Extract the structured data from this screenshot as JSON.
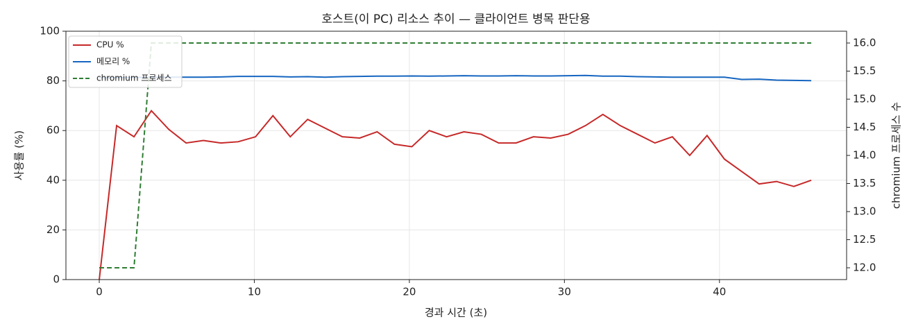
{
  "chart_data": {
    "type": "line",
    "title": "호스트(이 PC) 리소스 추이 — 클라이언트 병목 판단용",
    "xlabel": "경과 시간 (초)",
    "ylabel": "사용률 (%)",
    "y2label": "chromium 프로세스 수",
    "x": [
      0,
      1.12,
      2.24,
      3.36,
      4.48,
      5.6,
      6.72,
      7.84,
      8.96,
      10.08,
      11.2,
      12.32,
      13.44,
      14.56,
      15.68,
      16.8,
      17.92,
      19.04,
      20.16,
      21.28,
      22.4,
      23.52,
      24.64,
      25.76,
      26.88,
      28,
      29.12,
      30.24,
      31.36,
      32.48,
      33.6,
      34.72,
      35.84,
      36.96,
      38.08,
      39.2,
      40.32,
      41.44,
      42.56,
      43.68,
      44.8,
      45.92
    ],
    "series": [
      {
        "name": "CPU %",
        "color": "#c62828",
        "linestyle": "solid",
        "values": [
          0,
          62,
          57.5,
          68,
          60.5,
          55,
          56,
          55,
          55.5,
          57.5,
          66,
          57.5,
          64.5,
          61,
          57.5,
          57,
          59.5,
          54.5,
          53.5,
          60,
          57.5,
          59.5,
          58.5,
          55,
          55,
          57.5,
          57,
          58.5,
          62,
          66.5,
          62,
          58.5,
          55,
          57.5,
          50,
          58,
          48.5,
          43.5,
          38.5,
          39.5,
          37.5,
          40
        ]
      },
      {
        "name": "메모리 %",
        "color": "#1565c0",
        "linestyle": "solid",
        "values": [
          81.3,
          81.3,
          81.4,
          81.5,
          81.5,
          81.5,
          81.5,
          81.6,
          81.8,
          81.8,
          81.8,
          81.6,
          81.7,
          81.5,
          81.7,
          81.8,
          81.9,
          81.9,
          82.0,
          81.9,
          82.0,
          82.1,
          82.0,
          82.0,
          82.1,
          82.0,
          82.0,
          82.1,
          82.2,
          81.9,
          81.9,
          81.7,
          81.6,
          81.5,
          81.5,
          81.5,
          81.5,
          80.6,
          80.7,
          80.3,
          80.2,
          80.1
        ]
      },
      {
        "name": "chromium 프로세스",
        "color": "#2e7d32",
        "linestyle": "dashed",
        "axis": "y2",
        "values": [
          12,
          12,
          12,
          16,
          16,
          16,
          16,
          16,
          16,
          16,
          16,
          16,
          16,
          16,
          16,
          16,
          16,
          16,
          16,
          16,
          16,
          16,
          16,
          16,
          16,
          16,
          16,
          16,
          16,
          16,
          16,
          16,
          16,
          16,
          16,
          16,
          16,
          16,
          16,
          16,
          16,
          16
        ]
      }
    ],
    "xlim": [
      -2.15,
      48.2
    ],
    "xticks": [
      0,
      10,
      20,
      30,
      40
    ],
    "ylim": [
      0,
      100
    ],
    "yticks": [
      0,
      20,
      40,
      60,
      80,
      100
    ],
    "y2lim": [
      11.79,
      16.21
    ],
    "y2ticks": [
      {
        "value": 12,
        "label": "12.0"
      },
      {
        "value": 12.5,
        "label": "12.5"
      },
      {
        "value": 13,
        "label": "13.0"
      },
      {
        "value": 13.5,
        "label": "13.5"
      },
      {
        "value": 14,
        "label": "14.0"
      },
      {
        "value": 14.5,
        "label": "14.5"
      },
      {
        "value": 15,
        "label": "15.0"
      },
      {
        "value": 15.5,
        "label": "15.5"
      },
      {
        "value": 16,
        "label": "16.0"
      }
    ],
    "grid": true,
    "legend": "upper left"
  }
}
